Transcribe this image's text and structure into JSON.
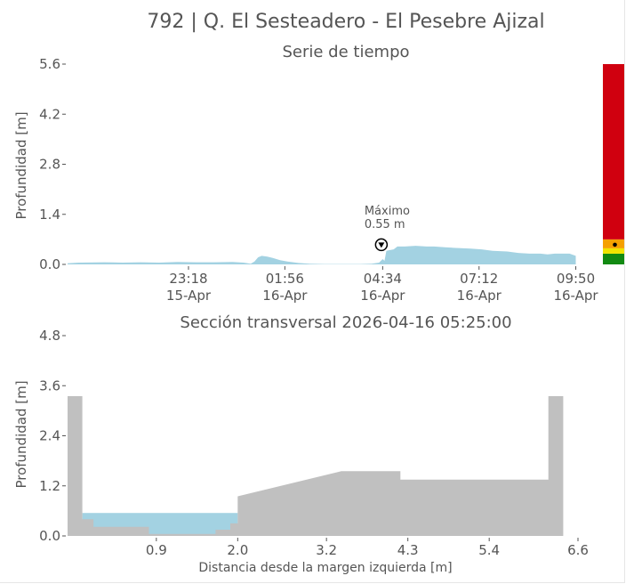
{
  "title": "792 | Q. El Sesteadero - El Pesebre Ajizal",
  "colors": {
    "water": "#a3d2e2",
    "terrain": "#c0c0c0",
    "text": "#555555",
    "alert_red": "#d0000f",
    "alert_orange": "#f5a000",
    "alert_yellow": "#f0e400",
    "alert_green": "#128a12"
  },
  "chart_data": [
    {
      "type": "area",
      "subtitle": "Serie de tiempo",
      "ylabel": "Profundidad [m]",
      "ylim": [
        0,
        5.6
      ],
      "yticks": [
        "0.0",
        "1.4",
        "2.8",
        "4.2",
        "5.6"
      ],
      "xticks": [
        {
          "t": 1.3,
          "time": "23:18",
          "date": "15-Apr"
        },
        {
          "t": 3.93,
          "time": "01:56",
          "date": "16-Apr"
        },
        {
          "t": 6.6,
          "time": "04:34",
          "date": "16-Apr"
        },
        {
          "t": 9.23,
          "time": "07:12",
          "date": "16-Apr"
        },
        {
          "t": 11.87,
          "time": "09:50",
          "date": "16-Apr"
        }
      ],
      "xlim": [
        -2.0,
        11.93
      ],
      "series": [
        {
          "x": [
            -2.0,
            -1.7,
            -1.0,
            -0.5,
            0.0,
            0.5,
            1.0,
            1.5,
            2.0,
            2.5,
            2.8,
            3.0,
            3.1,
            3.2,
            3.3,
            3.45,
            3.6,
            3.8,
            4.0,
            4.3,
            4.6,
            5.0,
            5.5,
            6.0,
            6.3,
            6.5,
            6.6,
            6.65,
            6.7,
            6.8,
            6.9,
            7.0,
            7.2,
            7.5,
            7.8,
            8.0,
            8.3,
            8.6,
            9.0,
            9.3,
            9.6,
            10.0,
            10.3,
            10.6,
            10.9,
            11.1,
            11.3,
            11.5,
            11.7,
            11.87
          ],
          "y": [
            0.03,
            0.05,
            0.06,
            0.05,
            0.06,
            0.05,
            0.07,
            0.06,
            0.06,
            0.07,
            0.05,
            0.02,
            0.08,
            0.2,
            0.24,
            0.22,
            0.18,
            0.12,
            0.08,
            0.04,
            0.02,
            0.01,
            0.01,
            0.01,
            0.02,
            0.05,
            0.15,
            0.1,
            0.38,
            0.4,
            0.42,
            0.5,
            0.5,
            0.52,
            0.5,
            0.5,
            0.48,
            0.46,
            0.44,
            0.42,
            0.38,
            0.36,
            0.32,
            0.3,
            0.3,
            0.28,
            0.3,
            0.3,
            0.3,
            0.24
          ]
        }
      ],
      "annotation": {
        "line1": "Máximo",
        "line2": "0.55 m",
        "x": 7.0,
        "y": 0.55
      },
      "alert_bar": {
        "levels": [
          {
            "name": "green",
            "from": 0.0,
            "to": 0.3
          },
          {
            "name": "yellow",
            "from": 0.3,
            "to": 0.45
          },
          {
            "name": "orange",
            "from": 0.45,
            "to": 0.7
          },
          {
            "name": "red",
            "from": 0.7,
            "to": 5.6
          }
        ],
        "marker": 0.55
      }
    },
    {
      "type": "area",
      "title": "Sección transversal 2026-04-16 05:25:00",
      "ylabel": "Profundidad [m]",
      "xlabel": "Distancia desde la margen izquierda [m]",
      "xlim": [
        -0.3,
        6.6
      ],
      "ylim": [
        0,
        4.8
      ],
      "xticks": [
        "0.9",
        "2.0",
        "3.2",
        "4.3",
        "5.4",
        "6.6"
      ],
      "yticks": [
        "0.0",
        "1.2",
        "2.4",
        "3.6",
        "4.8"
      ],
      "water_level": 0.55,
      "terrain": {
        "x": [
          -0.3,
          -0.3,
          -0.1,
          -0.1,
          0.05,
          0.05,
          0.8,
          0.8,
          1.7,
          1.7,
          1.9,
          1.9,
          2.0,
          2.0,
          3.4,
          4.2,
          4.2,
          6.2,
          6.2,
          6.4,
          6.4
        ],
        "y": [
          0.0,
          3.35,
          3.35,
          0.4,
          0.4,
          0.22,
          0.22,
          0.05,
          0.05,
          0.15,
          0.15,
          0.3,
          0.3,
          0.95,
          1.55,
          1.55,
          1.35,
          1.35,
          3.35,
          3.35,
          0.0
        ]
      }
    }
  ]
}
